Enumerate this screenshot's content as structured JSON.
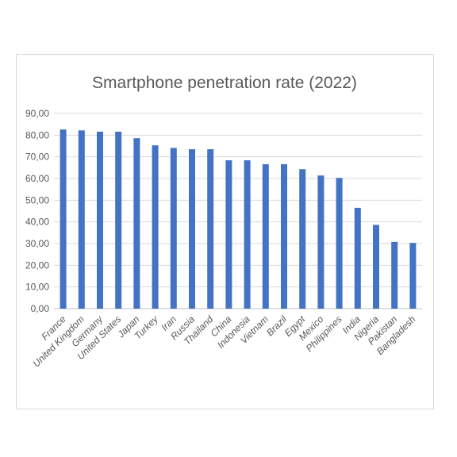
{
  "chart_data": {
    "type": "bar",
    "title": "Smartphone penetration rate (2022)",
    "xlabel": "",
    "ylabel": "",
    "ylim": [
      0,
      90
    ],
    "y_ticks": [
      "0,00",
      "10,00",
      "20,00",
      "30,00",
      "40,00",
      "50,00",
      "60,00",
      "70,00",
      "80,00",
      "90,00"
    ],
    "grid": true,
    "legend": "none",
    "bar_color": "#4472c4",
    "categories": [
      "France",
      "United Kingdom",
      "Germany",
      "United States",
      "Japan",
      "Turkey",
      "Iran",
      "Russia",
      "Thailand",
      "China",
      "Indonesia",
      "Vietnam",
      "Brazil",
      "Egypt",
      "Mexico",
      "Philippines",
      "India",
      "Nigeria",
      "Pakistan",
      "Bangladesh"
    ],
    "values": [
      82.6,
      82.2,
      81.6,
      81.6,
      78.6,
      75.3,
      74.1,
      73.5,
      73.5,
      68.4,
      68.4,
      66.6,
      66.6,
      64.3,
      61.4,
      60.3,
      46.5,
      38.6,
      30.8,
      30.3
    ]
  }
}
